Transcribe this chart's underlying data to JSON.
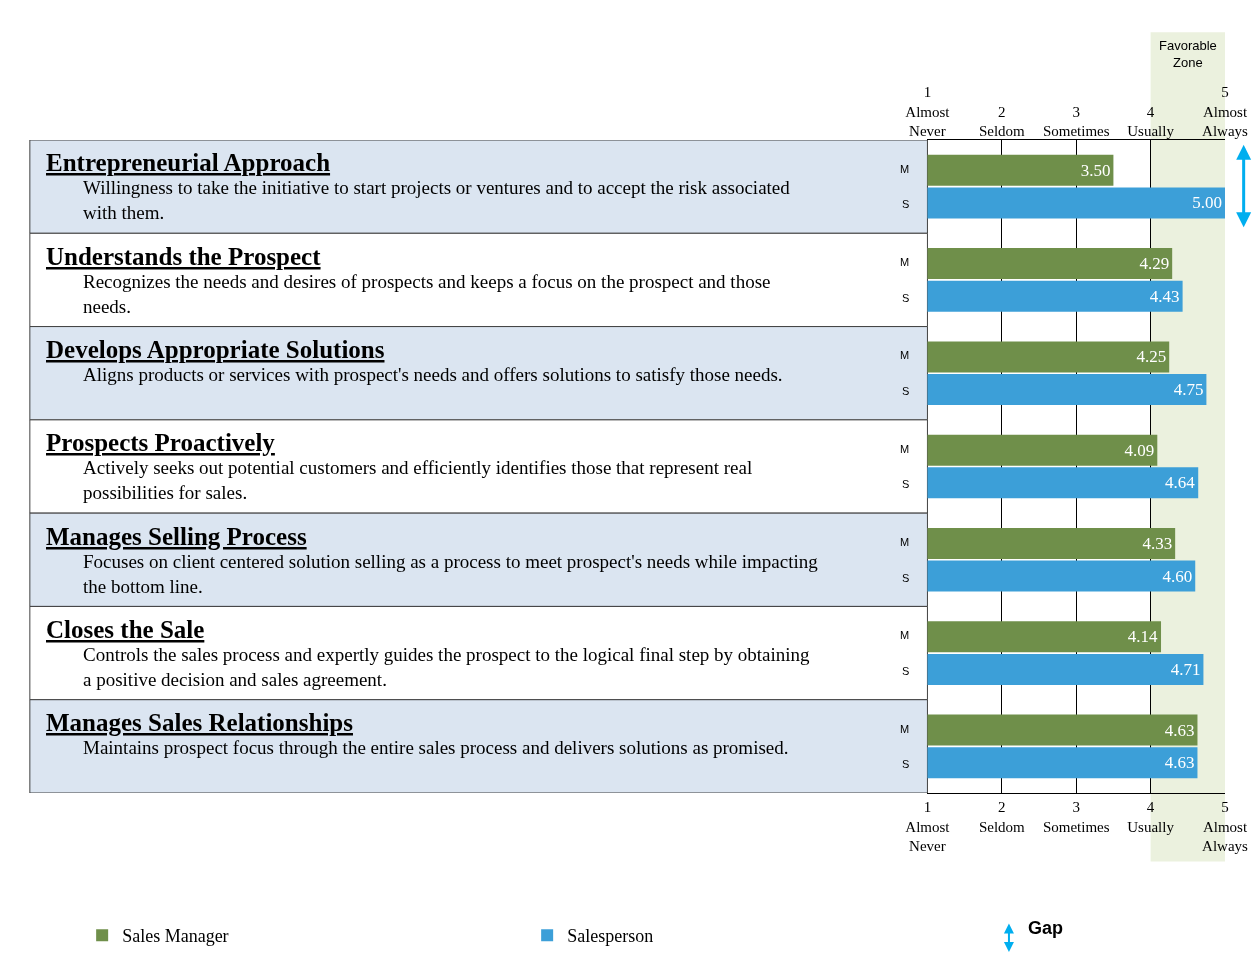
{
  "chart_data": {
    "type": "bar",
    "orientation": "horizontal",
    "categories": [
      "Entrepreneurial Approach\nWillingness to take the initiative to start projects or ventures and to accept the risk associated\nwith them.",
      "Understands the Prospect\nRecognizes the needs and desires of prospects and keeps a focus on the prospect and those\nneeds.",
      "Develops Appropriate Solutions\nAligns products or services with prospect's needs and offers solutions to satisfy those needs.",
      "Prospects Proactively\nActively seeks out potential customers and efficiently identifies those that represent real\npossibilities for sales.",
      "Manages Selling Process\nFocuses on client centered solution selling as a process to meet prospect's needs while impacting\nthe bottom line.",
      "Closes the Sale\nControls the sales process and expertly guides the prospect to the logical final step by obtaining\na positive decision and sales agreement.",
      "Manages Sales Relationships\nMaintains prospect focus through the entire sales process and delivers solutions as promised."
    ],
    "series": [
      {
        "name": "Sales Manager",
        "color": "#6f8f4a",
        "values": [
          3.5,
          4.29,
          4.25,
          4.09,
          4.33,
          4.14,
          4.63
        ],
        "value_labels": [
          "3.50",
          "4.29",
          "4.25",
          "4.09",
          "4.33",
          "4.14",
          "4.63"
        ]
      },
      {
        "name": "Salesperson",
        "color": "#3c9fd8",
        "values": [
          5.0,
          4.43,
          4.75,
          4.64,
          4.6,
          4.71,
          4.63
        ],
        "value_labels": [
          "5.00",
          "4.43",
          "4.75",
          "4.64",
          "4.60",
          "4.71",
          "4.63"
        ]
      }
    ],
    "xlim": [
      1,
      5
    ],
    "xticks": [
      {
        "value": 1,
        "label": "1\nAlmost\nNever"
      },
      {
        "value": 2,
        "label": "2\nSeldom"
      },
      {
        "value": 3,
        "label": "3\nSometimes"
      },
      {
        "value": 4,
        "label": "4\nUsually"
      },
      {
        "value": 5,
        "label": "5\nAlmost\nAlways"
      }
    ],
    "x2lim": [
      1,
      5
    ],
    "x2ticks": [
      {
        "value": 1,
        "label": "1\nAlmost\nNever"
      },
      {
        "value": 2,
        "label": "2\nSeldom"
      },
      {
        "value": 3,
        "label": "3\nSometimes"
      },
      {
        "value": 4,
        "label": "4\nUsually"
      },
      {
        "value": 5,
        "label": "5\nAlmost\nAlways"
      }
    ],
    "bands": [
      {
        "axis": "x",
        "from": 4,
        "to": 5,
        "label": "Favorable\nZone",
        "color": "#ebf1de"
      }
    ],
    "grid": "x",
    "legend": "bottom",
    "annotations": [
      "M",
      "S",
      "M",
      "S",
      "M",
      "S",
      "M",
      "S",
      "M",
      "S",
      "M",
      "S",
      "M",
      "S",
      "Gap"
    ]
  }
}
